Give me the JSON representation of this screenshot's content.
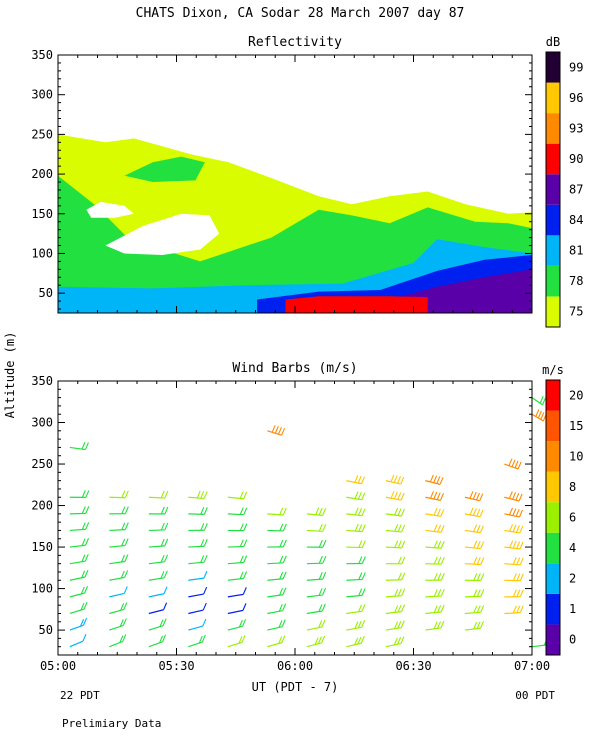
{
  "header": {
    "title": "CHATS Dixon, CA   Sodar   28 March 2007   day  87",
    "shared_ylabel": "Altitude (m)",
    "xlabel": "UT  (PDT - 7)",
    "start_label": "22 PDT",
    "end_label": "00 PDT",
    "footer": "Prelimiary Data"
  },
  "chart_data": [
    {
      "type": "heatmap",
      "title": "Reflectivity",
      "ylim": [
        25,
        350
      ],
      "yticks": [
        50,
        100,
        150,
        200,
        250,
        300,
        350
      ],
      "xlim": [
        "05:00",
        "07:00"
      ],
      "xtick_labels": [
        "05:00",
        "05:30",
        "06:00",
        "06:30",
        "07:00"
      ],
      "colorbar_unit": "dB",
      "colorbar_levels": [
        "75",
        "78",
        "81",
        "84",
        "87",
        "90",
        "93",
        "96",
        "99"
      ],
      "colorbar_colors": [
        "#d9fc00",
        "#22e040",
        "#00b4f8",
        "#0020f0",
        "#5a00a8",
        "#ff0000",
        "#ff8a00",
        "#ffc800",
        "#220033"
      ],
      "layers": [
        {
          "level": "75 dB",
          "color": "#d9fc00",
          "top_profile": [
            [
              0,
              250
            ],
            [
              5,
              245
            ],
            [
              10,
              240
            ],
            [
              16,
              245
            ],
            [
              22,
              235
            ],
            [
              28,
              225
            ],
            [
              36,
              215
            ],
            [
              45,
              195
            ],
            [
              55,
              172
            ],
            [
              62,
              162
            ],
            [
              70,
              172
            ],
            [
              78,
              178
            ],
            [
              86,
              162
            ],
            [
              95,
              150
            ],
            [
              100,
              152
            ]
          ]
        },
        {
          "level": "78 dB",
          "color": "#22e040",
          "top_profile": [
            [
              0,
              198
            ],
            [
              8,
              160
            ],
            [
              15,
              118
            ],
            [
              30,
              90
            ],
            [
              45,
              120
            ],
            [
              55,
              155
            ],
            [
              62,
              148
            ],
            [
              70,
              138
            ],
            [
              78,
              158
            ],
            [
              88,
              140
            ],
            [
              95,
              138
            ],
            [
              100,
              132
            ]
          ]
        },
        {
          "level": "81 dB",
          "color": "#00b4f8",
          "top_profile": [
            [
              0,
              58
            ],
            [
              20,
              56
            ],
            [
              40,
              60
            ],
            [
              60,
              62
            ],
            [
              75,
              88
            ],
            [
              80,
              118
            ],
            [
              90,
              108
            ],
            [
              100,
              100
            ]
          ]
        },
        {
          "level": "84 dB",
          "color": "#0020f0",
          "top_profile": [
            [
              42,
              42
            ],
            [
              55,
              52
            ],
            [
              68,
              54
            ],
            [
              80,
              78
            ],
            [
              90,
              92
            ],
            [
              100,
              98
            ]
          ]
        },
        {
          "level": "87 dB",
          "color": "#5a00a8",
          "top_profile": [
            [
              70,
              42
            ],
            [
              80,
              58
            ],
            [
              90,
              70
            ],
            [
              100,
              80
            ]
          ]
        },
        {
          "level": "90 dB",
          "color": "#ff0000",
          "top_profile": [
            [
              48,
              42
            ],
            [
              55,
              46
            ],
            [
              70,
              46
            ],
            [
              78,
              45
            ]
          ]
        }
      ],
      "blank_regions": [
        "near 300 m at ~05:10",
        "around 110-150 m at 05:15-05:40",
        "around 150-165 m near 05:10"
      ]
    },
    {
      "type": "scatter",
      "title": "Wind Barbs (m/s)",
      "ylim": [
        20,
        350
      ],
      "yticks": [
        50,
        100,
        150,
        200,
        250,
        300,
        350
      ],
      "xlim": [
        "05:00",
        "07:00"
      ],
      "xtick_labels": [
        "05:00",
        "05:30",
        "06:00",
        "06:30",
        "07:00"
      ],
      "colorbar_unit": "m/s",
      "colorbar_levels": [
        "0",
        "1",
        "2",
        "4",
        "6",
        "8",
        "10",
        "15",
        "20"
      ],
      "colorbar_colors": [
        "#5a00a8",
        "#0020f0",
        "#00b4f8",
        "#22e040",
        "#9af000",
        "#ffc800",
        "#ff8a00",
        "#ff5500",
        "#ff0000"
      ],
      "times": [
        "05:03",
        "05:13",
        "05:23",
        "05:33",
        "05:43",
        "05:53",
        "06:03",
        "06:13",
        "06:23",
        "06:33",
        "06:43",
        "06:53",
        "07:00"
      ],
      "altitudes": [
        30,
        50,
        70,
        90,
        110,
        130,
        150,
        170,
        190,
        210,
        230,
        250,
        270,
        290,
        310,
        330
      ],
      "speed_columns": [
        [
          3.5,
          4,
          5,
          5.5,
          6,
          6,
          6.5,
          7,
          7,
          null,
          null,
          null,
          5
        ],
        [
          3.8,
          4,
          5,
          3,
          5,
          5,
          6,
          6.5,
          6.5,
          7,
          7.5,
          null,
          null
        ],
        [
          4,
          5,
          1.5,
          1,
          1,
          5,
          4,
          6,
          6.5,
          7,
          7.5,
          8,
          null
        ],
        [
          4,
          2,
          3.5,
          1,
          1,
          4,
          4,
          5,
          6.5,
          7,
          7.5,
          8,
          null
        ],
        [
          4,
          5,
          5,
          3,
          4,
          4,
          4,
          5,
          6,
          7,
          7.5,
          8.5,
          null
        ],
        [
          4,
          4.5,
          5,
          5,
          4,
          4,
          5,
          5.5,
          6,
          7.5,
          8,
          8.5,
          null
        ],
        [
          5,
          4.5,
          5,
          5,
          5,
          5.5,
          5.5,
          6,
          6.5,
          7.5,
          8,
          9,
          null
        ],
        [
          5,
          4.5,
          5,
          5,
          5,
          5.5,
          6,
          6.5,
          7,
          8,
          8.5,
          9,
          null
        ],
        [
          5.5,
          5,
          5,
          5,
          5.5,
          6,
          6.5,
          7,
          7.5,
          8,
          9,
          10,
          null
        ],
        [
          5.5,
          6,
          6,
          6.5,
          6,
          null,
          null,
          7.5,
          9,
          10,
          11,
          11,
          null
        ],
        [
          null,
          null,
          null,
          null,
          null,
          null,
          null,
          8,
          9,
          10,
          null,
          null,
          null
        ],
        [
          null,
          null,
          null,
          null,
          null,
          null,
          null,
          null,
          null,
          null,
          null,
          12,
          null
        ],
        [
          5,
          null,
          null,
          null,
          null,
          null,
          null,
          null,
          null,
          null,
          null,
          null,
          null
        ],
        [
          null,
          null,
          null,
          null,
          null,
          10,
          null,
          null,
          null,
          null,
          null,
          null,
          null
        ],
        [
          null,
          null,
          null,
          null,
          null,
          null,
          null,
          null,
          null,
          null,
          null,
          null,
          10
        ],
        [
          null,
          null,
          null,
          null,
          null,
          null,
          null,
          null,
          null,
          null,
          null,
          null,
          4
        ]
      ]
    }
  ]
}
